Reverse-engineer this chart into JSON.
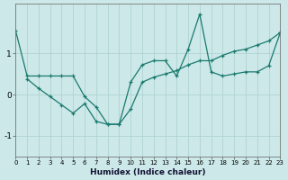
{
  "xlabel": "Humidex (Indice chaleur)",
  "background_color": "#cce8e8",
  "grid_color": "#aacfcf",
  "line_color": "#1a7a6e",
  "x_min": 0,
  "x_max": 23,
  "y_min": -1.5,
  "y_max": 2.2,
  "yticks": [
    -1,
    0,
    1
  ],
  "xticks": [
    0,
    1,
    2,
    3,
    4,
    5,
    6,
    7,
    8,
    9,
    10,
    11,
    12,
    13,
    14,
    15,
    16,
    17,
    18,
    19,
    20,
    21,
    22,
    23
  ],
  "series1_x": [
    0,
    1,
    2,
    3,
    4,
    5,
    6,
    7,
    8,
    9,
    10,
    11,
    12,
    13,
    14,
    15,
    16,
    17,
    18,
    19,
    20,
    21,
    22,
    23
  ],
  "series1_y": [
    1.55,
    0.45,
    0.45,
    0.45,
    0.45,
    0.45,
    -0.05,
    -0.3,
    -0.72,
    -0.72,
    0.3,
    0.72,
    0.82,
    0.82,
    0.45,
    1.1,
    1.95,
    0.55,
    0.45,
    0.5,
    0.55,
    0.55,
    0.7,
    1.5
  ],
  "series2_x": [
    1,
    2,
    3,
    4,
    5,
    6,
    7,
    8,
    9,
    10,
    11,
    12,
    13,
    14,
    15,
    16,
    17,
    18,
    19,
    20,
    21,
    22,
    23
  ],
  "series2_y": [
    0.38,
    0.15,
    -0.05,
    -0.25,
    -0.45,
    -0.22,
    -0.65,
    -0.72,
    -0.72,
    -0.35,
    0.3,
    0.42,
    0.5,
    0.58,
    0.72,
    0.82,
    0.82,
    0.95,
    1.05,
    1.1,
    1.2,
    1.3,
    1.5
  ]
}
